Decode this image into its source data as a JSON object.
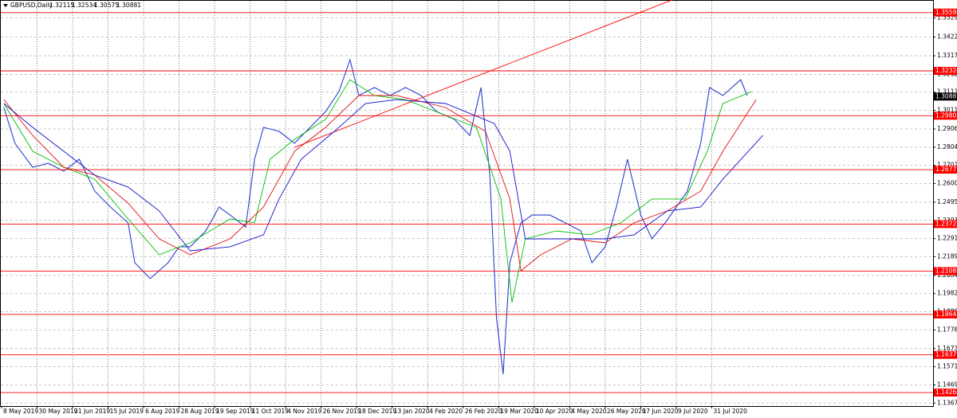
{
  "header": {
    "symbol": "GBPUSD,Daily",
    "ohlc": [
      1.32115,
      1.32534,
      1.30575,
      1.30881
    ]
  },
  "chart_data": {
    "type": "line",
    "xlim": [
      0,
      419
    ],
    "ylim": [
      1.13504,
      1.36303
    ],
    "grid": true,
    "xticks": [
      {
        "value": 0,
        "label": "8 May 2019"
      },
      {
        "value": 16,
        "label": "30 May 2019"
      },
      {
        "value": 32,
        "label": "21 Jun 2019"
      },
      {
        "value": 48,
        "label": "15 Jul 2019"
      },
      {
        "value": 64,
        "label": "6 Aug 2019"
      },
      {
        "value": 80,
        "label": "28 Aug 2019"
      },
      {
        "value": 96,
        "label": "19 Sep 2019"
      },
      {
        "value": 112,
        "label": "11 Oct 2019"
      },
      {
        "value": 128,
        "label": "4 Nov 2019"
      },
      {
        "value": 144,
        "label": "26 Nov 2019"
      },
      {
        "value": 160,
        "label": "18 Dec 2019"
      },
      {
        "value": 176,
        "label": "13 Jan 2020"
      },
      {
        "value": 192,
        "label": "4 Feb 2020"
      },
      {
        "value": 208,
        "label": "26 Feb 2020"
      },
      {
        "value": 224,
        "label": "19 Mar 2020"
      },
      {
        "value": 240,
        "label": "10 Apr 2020"
      },
      {
        "value": 256,
        "label": "4 May 2020"
      },
      {
        "value": 272,
        "label": "26 May 2020"
      },
      {
        "value": 288,
        "label": "17 Jun 2020"
      },
      {
        "value": 304,
        "label": "9 Jul 2020"
      },
      {
        "value": 320,
        "label": "31 Jul 2020"
      }
    ],
    "yticks": [
      {
        "value": 1.3529,
        "label": "1.35290"
      },
      {
        "value": 1.3422,
        "label": "1.34220"
      },
      {
        "value": 1.3317,
        "label": "1.33170"
      },
      {
        "value": 1.3212,
        "label": "1.32120"
      },
      {
        "value": 1.3113,
        "label": "1.31130"
      },
      {
        "value": 1.3011,
        "label": "1.30110"
      },
      {
        "value": 1.2906,
        "label": "1.29060"
      },
      {
        "value": 1.2804,
        "label": "1.28040"
      },
      {
        "value": 1.2702,
        "label": "1.27020"
      },
      {
        "value": 1.26,
        "label": "1.26000"
      },
      {
        "value": 1.2495,
        "label": "1.24950"
      },
      {
        "value": 1.2393,
        "label": "1.23930"
      },
      {
        "value": 1.2291,
        "label": "1.22910"
      },
      {
        "value": 1.2189,
        "label": "1.21890"
      },
      {
        "value": 1.2084,
        "label": "1.20840"
      },
      {
        "value": 1.1982,
        "label": "1.19820"
      },
      {
        "value": 1.188,
        "label": "1.18800"
      },
      {
        "value": 1.1778,
        "label": "1.17780"
      },
      {
        "value": 1.1673,
        "label": "1.16730"
      },
      {
        "value": 1.1571,
        "label": "1.15710"
      },
      {
        "value": 1.1469,
        "label": "1.14690"
      },
      {
        "value": 1.1367,
        "label": "1.13670"
      }
    ],
    "levels": [
      1.35598,
      1.32324,
      1.29805,
      1.26777,
      1.23722,
      1.21083,
      1.18648,
      1.16379,
      1.14263
    ],
    "level_color": "#ff0000",
    "current_price": 1.30881,
    "trendline": {
      "color": "#ff0000",
      "x": [
        132,
        302
      ],
      "values": [
        1.2803,
        1.363
      ]
    },
    "series": [
      {
        "color": "#2a3fcf",
        "x": [
          1,
          6,
          14,
          21,
          28,
          35,
          42,
          49,
          57,
          60,
          67,
          75,
          80,
          85,
          92,
          98,
          103,
          110,
          114,
          118,
          125,
          132,
          139,
          146,
          152,
          157,
          161,
          168,
          175,
          182,
          189,
          196,
          204,
          211,
          216,
          220,
          223,
          226,
          229,
          234,
          239,
          247,
          254,
          261,
          266,
          272,
          277,
          282,
          288,
          293,
          299,
          304,
          309,
          315,
          319,
          325,
          333,
          336
        ],
        "values": [
          1.3027,
          1.2826,
          1.2691,
          1.2714,
          1.2669,
          1.2736,
          1.2557,
          1.2468,
          1.2379,
          1.2155,
          1.2066,
          1.2155,
          1.2245,
          1.2245,
          1.2334,
          1.2468,
          1.2423,
          1.2356,
          1.2736,
          1.2915,
          1.2893,
          1.2826,
          1.2915,
          1.3004,
          1.3116,
          1.3295,
          1.3094,
          1.3139,
          1.3094,
          1.3139,
          1.3094,
          1.3004,
          1.296,
          1.287,
          1.3139,
          1.2647,
          1.1842,
          1.1529,
          1.2155,
          1.2379,
          1.2423,
          1.2423,
          1.2379,
          1.2334,
          1.2155,
          1.2245,
          1.2468,
          1.2736,
          1.2423,
          1.2289,
          1.2379,
          1.2468,
          1.2557,
          1.2826,
          1.3139,
          1.3094,
          1.3183,
          1.3094
        ]
      },
      {
        "color": "#00c000",
        "x": [
          1,
          14,
          28,
          42,
          57,
          71,
          85,
          103,
          114,
          121,
          132,
          146,
          157,
          168,
          182,
          200,
          214,
          225,
          230,
          236,
          250,
          265,
          279,
          293,
          308,
          318,
          325,
          338
        ],
        "values": [
          1.3049,
          1.2781,
          1.2691,
          1.2624,
          1.2401,
          1.22,
          1.2267,
          1.2401,
          1.2379,
          1.2736,
          1.2848,
          1.296,
          1.3183,
          1.3094,
          1.3071,
          1.2982,
          1.2915,
          1.2513,
          1.1932,
          1.2289,
          1.2334,
          1.2312,
          1.2379,
          1.2513,
          1.2513,
          1.2781,
          1.3049,
          1.3116
        ]
      },
      {
        "color": "#e01010",
        "x": [
          1,
          14,
          28,
          42,
          57,
          71,
          85,
          103,
          118,
          132,
          146,
          161,
          178,
          200,
          218,
          229,
          234,
          243,
          257,
          272,
          285,
          300,
          315,
          325,
          340
        ],
        "values": [
          1.3071,
          1.287,
          1.2691,
          1.2647,
          1.249,
          1.2289,
          1.22,
          1.2289,
          1.2468,
          1.2781,
          1.2915,
          1.3094,
          1.3094,
          1.3027,
          1.2893,
          1.2513,
          1.211,
          1.22,
          1.2289,
          1.2267,
          1.2379,
          1.2446,
          1.2557,
          1.2781,
          1.3071
        ]
      },
      {
        "color": "#1010d0",
        "x": [
          1,
          14,
          28,
          42,
          57,
          71,
          85,
          103,
          118,
          125,
          135,
          150,
          164,
          178,
          200,
          222,
          229,
          236,
          250,
          272,
          285,
          300,
          315,
          325,
          343
        ],
        "values": [
          1.3049,
          1.2915,
          1.2781,
          1.2647,
          1.258,
          1.2446,
          1.2222,
          1.2245,
          1.2312,
          1.2513,
          1.2736,
          1.2893,
          1.3049,
          1.3071,
          1.3049,
          1.2937,
          1.2781,
          1.2289,
          1.2289,
          1.2289,
          1.2312,
          1.2446,
          1.2468,
          1.2624,
          1.287
        ]
      }
    ]
  }
}
